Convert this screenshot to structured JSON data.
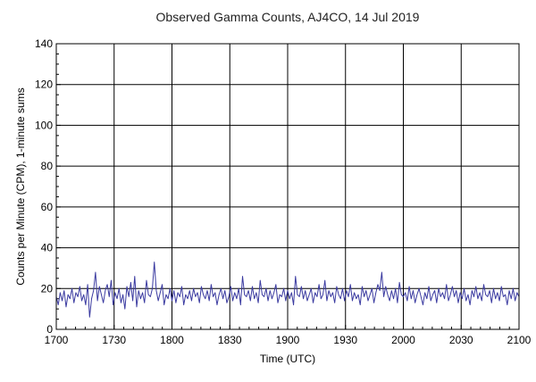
{
  "chart_data": {
    "type": "line",
    "title": "Observed Gamma Counts, AJ4CO, 14 Jul 2019",
    "xlabel": "Time (UTC)",
    "ylabel": "Counts per Minute (CPM), 1-minute sums",
    "x_tick_labels": [
      "1700",
      "1730",
      "1800",
      "1830",
      "1900",
      "1930",
      "2000",
      "2030",
      "2100"
    ],
    "y_tick_labels": [
      "0",
      "20",
      "40",
      "60",
      "80",
      "100",
      "120",
      "140"
    ],
    "y_ticks": [
      0,
      20,
      40,
      60,
      80,
      100,
      120,
      140
    ],
    "ylim": [
      0,
      140
    ],
    "x_range_minutes": [
      0,
      240
    ],
    "grid": true,
    "colors": {
      "series": "#3a3aa0",
      "grid": "#000000",
      "frame": "#000000"
    },
    "series": [
      {
        "values": [
          16,
          12,
          18,
          14,
          19,
          11,
          17,
          15,
          20,
          13,
          18,
          16,
          21,
          14,
          17,
          12,
          22,
          6,
          15,
          19,
          28,
          14,
          21,
          17,
          13,
          19,
          22,
          16,
          24,
          12,
          18,
          15,
          20,
          13,
          17,
          10,
          21,
          16,
          23,
          14,
          26,
          11,
          19,
          15,
          18,
          13,
          24,
          17,
          16,
          20,
          33,
          19,
          14,
          18,
          22,
          12,
          17,
          15,
          20,
          14,
          19,
          13,
          18,
          16,
          21,
          12,
          17,
          15,
          19,
          14,
          20,
          16,
          18,
          13,
          21,
          17,
          15,
          19,
          14,
          22,
          16,
          18,
          12,
          17,
          20,
          15,
          19,
          13,
          16,
          21,
          14,
          18,
          15,
          20,
          12,
          26,
          17,
          16,
          19,
          14,
          21,
          15,
          18,
          13,
          24,
          17,
          16,
          20,
          14,
          19,
          15,
          18,
          22,
          13,
          17,
          16,
          20,
          14,
          19,
          15,
          18,
          12,
          26,
          17,
          16,
          21,
          15,
          19,
          14,
          17,
          20,
          13,
          18,
          16,
          22,
          15,
          17,
          24,
          14,
          19,
          16,
          18,
          13,
          21,
          17,
          15,
          20,
          14,
          19,
          16,
          22,
          14,
          18,
          15,
          17,
          12,
          21,
          16,
          19,
          14,
          17,
          20,
          13,
          18,
          22,
          19,
          28,
          16,
          21,
          17,
          14,
          19,
          15,
          20,
          13,
          23,
          17,
          16,
          18,
          14,
          21,
          15,
          19,
          13,
          17,
          20,
          16,
          12,
          18,
          15,
          21,
          14,
          17,
          19,
          13,
          20,
          16,
          18,
          15,
          22,
          14,
          17,
          21,
          16,
          19,
          13,
          18,
          15,
          20,
          14,
          17,
          12,
          19,
          16,
          21,
          15,
          18,
          14,
          22,
          17,
          16,
          19,
          13,
          20,
          15,
          18,
          14,
          21,
          16,
          17,
          12,
          19,
          15,
          20,
          14,
          18,
          16
        ]
      }
    ]
  }
}
